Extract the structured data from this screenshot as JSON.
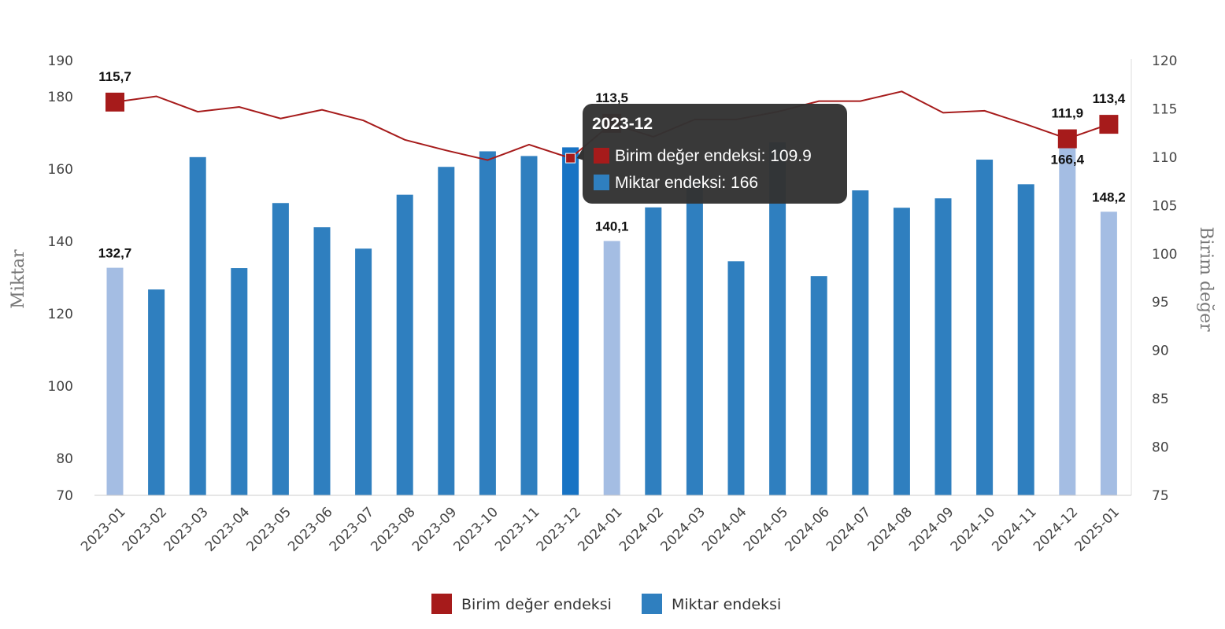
{
  "chart_data": {
    "type": "bar+line",
    "categories": [
      "2023-01",
      "2023-02",
      "2023-03",
      "2023-04",
      "2023-05",
      "2023-06",
      "2023-07",
      "2023-08",
      "2023-09",
      "2023-10",
      "2023-11",
      "2023-12",
      "2024-01",
      "2024-02",
      "2024-03",
      "2024-04",
      "2024-05",
      "2024-06",
      "2024-07",
      "2024-08",
      "2024-09",
      "2024-10",
      "2024-11",
      "2024-12",
      "2025-01"
    ],
    "y_left": {
      "label": "Miktar",
      "range": [
        70,
        190
      ],
      "ticks": [
        70,
        80,
        100,
        120,
        140,
        160,
        180,
        190
      ]
    },
    "y_right": {
      "label": "Birim değer",
      "range": [
        75,
        120
      ],
      "ticks": [
        75,
        80,
        85,
        90,
        95,
        100,
        105,
        110,
        115,
        120
      ]
    },
    "series": [
      {
        "name": "Birim değer endeksi",
        "type": "line",
        "axis": "right",
        "color": "#a61b1b",
        "values": [
          115.7,
          116.3,
          114.7,
          115.2,
          114.0,
          114.9,
          113.8,
          111.8,
          110.7,
          109.7,
          111.3,
          109.9,
          113.5,
          112.1,
          113.9,
          113.9,
          114.7,
          115.8,
          115.8,
          116.8,
          114.6,
          114.8,
          113.4,
          111.9,
          113.4
        ]
      },
      {
        "name": "Miktar endeksi",
        "type": "bar",
        "axis": "left",
        "color": "#2f7fbf",
        "values": [
          132.7,
          126.7,
          163.3,
          132.6,
          150.6,
          143.9,
          138.0,
          152.9,
          160.6,
          164.9,
          163.6,
          166.0,
          140.1,
          149.4,
          156.9,
          134.5,
          167.4,
          130.4,
          154.1,
          149.3,
          151.9,
          162.6,
          155.8,
          166.4,
          148.2
        ]
      }
    ],
    "highlighted_bars": [
      0,
      12,
      23,
      24
    ],
    "line_markers": [
      0,
      12,
      23,
      24
    ],
    "data_labels": {
      "line": [
        {
          "index": 0,
          "text": "115,7"
        },
        {
          "index": 12,
          "text": "113,5"
        },
        {
          "index": 23,
          "text": "111,9"
        },
        {
          "index": 24,
          "text": "113,4"
        }
      ],
      "bar": [
        {
          "index": 0,
          "text": "132,7"
        },
        {
          "index": 12,
          "text": "140,1"
        },
        {
          "index": 23,
          "text": "166,4"
        },
        {
          "index": 24,
          "text": "148,2"
        }
      ]
    },
    "legend": {
      "position": "bottom",
      "items": [
        "Birim değer endeksi",
        "Miktar endeksi"
      ]
    },
    "grid": false,
    "tooltip": {
      "index": 11,
      "title": "2023-12",
      "lines": [
        "Birim değer endeksi: 109.9",
        "Miktar endeksi: 166"
      ]
    }
  },
  "colors": {
    "bar": "#2f7fbf",
    "bar_light": "#a4bde3",
    "bar_active": "#1773c4",
    "line": "#a61b1b",
    "tooltip_bg": "#333333"
  }
}
